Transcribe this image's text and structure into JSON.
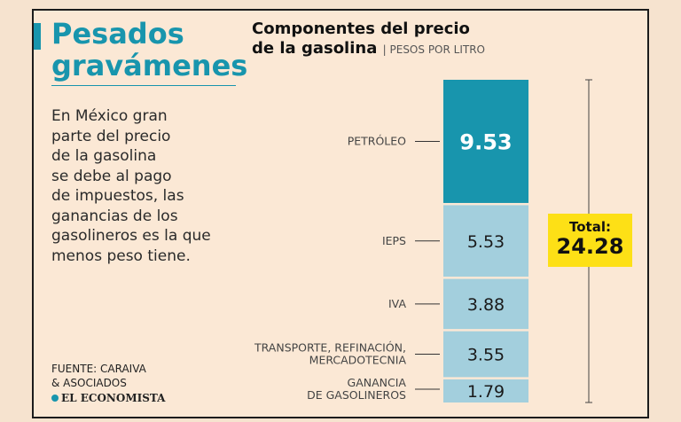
{
  "headline": "Pesados gravámenes",
  "body": "En México gran\nparte del precio\nde la gasolina\nse debe al pago\nde impuestos, las\nganancias de los\ngasolineros es la que\nmenos peso tiene.",
  "source": "FUENTE: CARAIVA\n& ASOCIADOS",
  "brand": "EL ECONOMISTA",
  "chart_data": {
    "type": "bar",
    "stacked": true,
    "title": "Componentes del precio de la gasolina",
    "unit": "PESOS POR LITRO",
    "segments": [
      {
        "label": "PETRÓLEO",
        "value": 9.53,
        "display": "9.53",
        "color": "#1895ad"
      },
      {
        "label": "IEPS",
        "value": 5.53,
        "display": "5.53",
        "color": "#a3cfdd"
      },
      {
        "label": "IVA",
        "value": 3.88,
        "display": "3.88",
        "color": "#a3cfdd"
      },
      {
        "label": "TRANSPORTE, REFINACIÓN, MERCADOTECNIA",
        "value": 3.55,
        "display": "3.55",
        "color": "#a3cfdd"
      },
      {
        "label": "GANANCIA DE GASOLINEROS",
        "value": 1.79,
        "display": "1.79",
        "color": "#a3cfdd"
      }
    ],
    "total_label": "Total:",
    "total_value": "24.28",
    "total_color": "#fde016"
  }
}
